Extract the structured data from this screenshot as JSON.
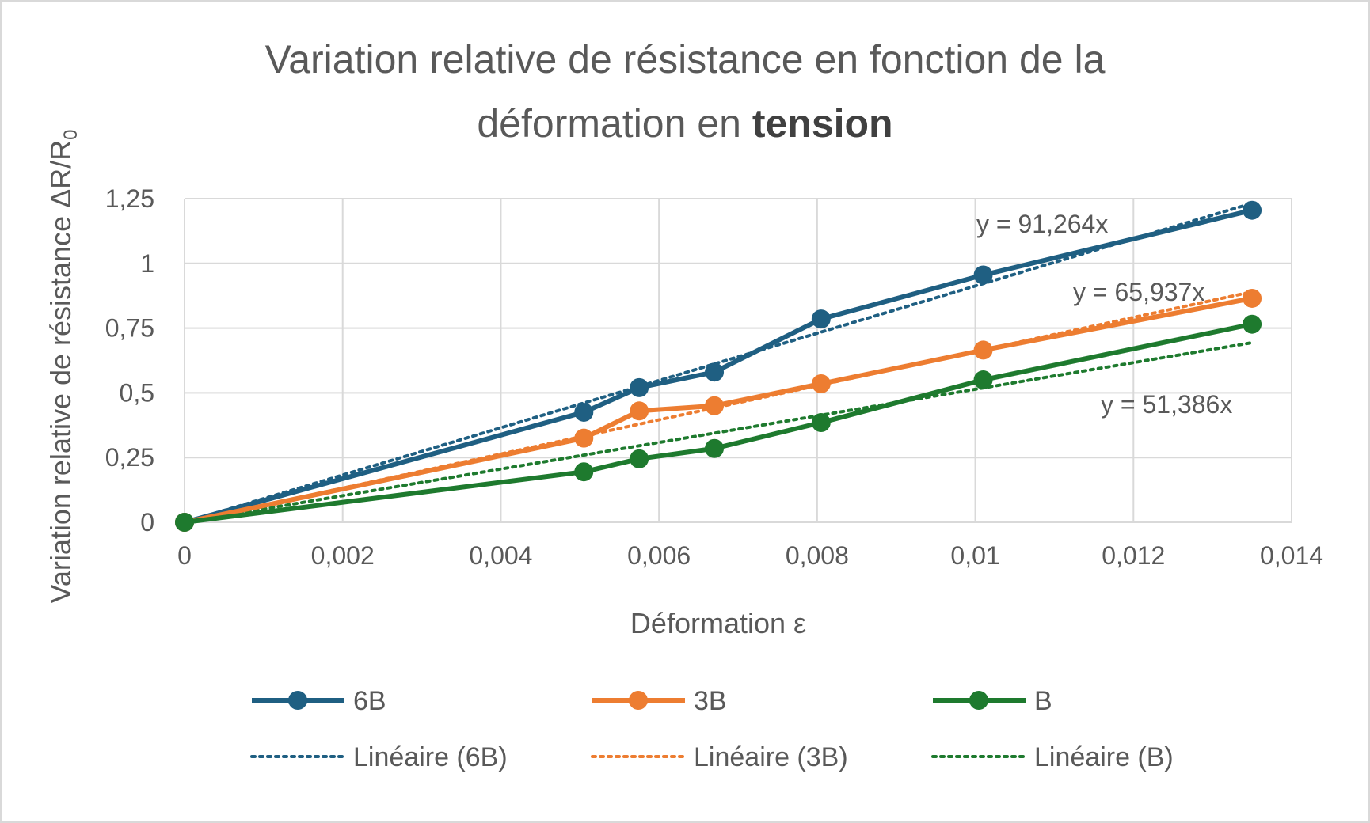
{
  "chart_data": {
    "type": "line",
    "title_line1": "Variation relative de résistance en fonction de la",
    "title_line2_prefix": "déformation en ",
    "title_line2_bold": "tension",
    "xlabel": "Déformation ε",
    "ylabel_main": "Variation relative de résistance ΔR/R",
    "ylabel_sub": "0",
    "xlim": [
      0,
      0.014
    ],
    "ylim": [
      0,
      1.25
    ],
    "x_ticks": [
      "0",
      "0,002",
      "0,004",
      "0,006",
      "0,008",
      "0,01",
      "0,012",
      "0,014"
    ],
    "y_ticks": [
      "0",
      "0,25",
      "0,5",
      "0,75",
      "1",
      "1,25"
    ],
    "grid": true,
    "legend_position": "bottom",
    "series": [
      {
        "name": "6B",
        "color": "#1f5f82",
        "x": [
          0,
          0.00505,
          0.00575,
          0.0067,
          0.00805,
          0.0101,
          0.0135
        ],
        "y": [
          0,
          0.425,
          0.52,
          0.58,
          0.785,
          0.955,
          1.205
        ]
      },
      {
        "name": "3B",
        "color": "#ed7d31",
        "x": [
          0,
          0.00505,
          0.00575,
          0.0067,
          0.00805,
          0.0101,
          0.0135
        ],
        "y": [
          0,
          0.325,
          0.43,
          0.45,
          0.535,
          0.665,
          0.865
        ]
      },
      {
        "name": "B",
        "color": "#1e7a2e",
        "x": [
          0,
          0.00505,
          0.00575,
          0.0067,
          0.00805,
          0.0101,
          0.0135
        ],
        "y": [
          0,
          0.195,
          0.245,
          0.285,
          0.385,
          0.55,
          0.765
        ]
      }
    ],
    "trendlines": [
      {
        "name": "Linéaire (6B)",
        "color": "#1f5f82",
        "slope": 91.264,
        "equation": "y = 91,264x"
      },
      {
        "name": "Linéaire (3B)",
        "color": "#ed7d31",
        "slope": 65.937,
        "equation": "y = 65,937x"
      },
      {
        "name": "Linéaire (B)",
        "color": "#1e7a2e",
        "slope": 51.386,
        "equation": "y = 51,386x"
      }
    ]
  }
}
